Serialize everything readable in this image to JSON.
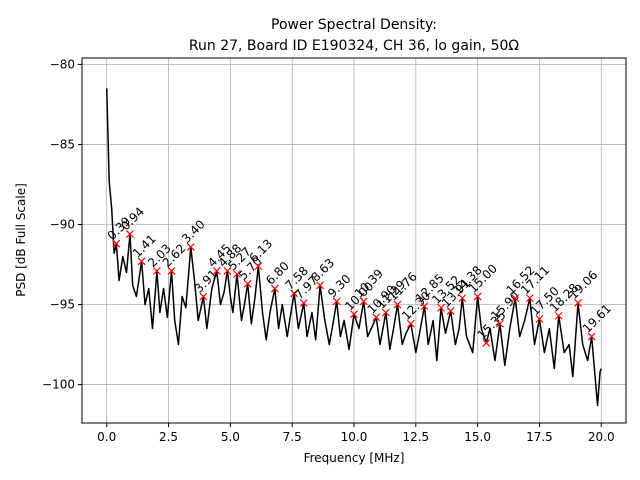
{
  "chart_data": {
    "type": "line",
    "title": [
      "Power Spectral Density:",
      "Run 27, Board ID E190324, CH 36, lo gain, 50Ω"
    ],
    "xlabel": "Frequency [MHz]",
    "ylabel": "PSD [dB Full Scale]",
    "xlim": [
      -1,
      21
    ],
    "ylim": [
      -102.4,
      -79.6
    ],
    "xticks": [
      {
        "value": 0,
        "label": "0.0"
      },
      2.5,
      {
        "value": 5,
        "label": "5.0"
      },
      7.5,
      {
        "value": 10,
        "label": "10.0"
      },
      12.5,
      {
        "value": 15,
        "label": "15.0"
      },
      17.5,
      {
        "value": 20,
        "label": "20.0"
      }
    ],
    "yticks": [
      {
        "value": -100,
        "label": "−100"
      },
      {
        "value": -95,
        "label": "−95"
      },
      {
        "value": -90,
        "label": "−90"
      },
      {
        "value": -85,
        "label": "−85"
      },
      {
        "value": -80,
        "label": "−80"
      }
    ],
    "grid": true,
    "series": [
      {
        "color": "#000000",
        "marker": "none",
        "x": [
          0.0,
          0.1,
          0.2,
          0.3,
          0.39,
          0.5,
          0.65,
          0.8,
          0.94,
          1.05,
          1.2,
          1.41,
          1.55,
          1.7,
          1.85,
          2.03,
          2.15,
          2.3,
          2.45,
          2.62,
          2.75,
          2.9,
          3.05,
          3.2,
          3.4,
          3.55,
          3.7,
          3.91,
          4.05,
          4.25,
          4.45,
          4.6,
          4.75,
          4.88,
          5.0,
          5.1,
          5.27,
          5.45,
          5.57,
          5.7,
          5.85,
          6.0,
          6.13,
          6.3,
          6.45,
          6.6,
          6.8,
          6.95,
          7.1,
          7.3,
          7.45,
          7.58,
          7.75,
          7.97,
          8.1,
          8.3,
          8.45,
          8.63,
          8.8,
          9.0,
          9.15,
          9.3,
          9.45,
          9.6,
          9.8,
          10.0,
          10.2,
          10.39,
          10.55,
          10.7,
          10.9,
          11.05,
          11.29,
          11.45,
          11.6,
          11.76,
          11.95,
          12.1,
          12.3,
          12.5,
          12.65,
          12.85,
          13.0,
          13.2,
          13.35,
          13.52,
          13.7,
          13.91,
          14.1,
          14.25,
          14.38,
          14.55,
          14.8,
          15.0,
          15.15,
          15.35,
          15.5,
          15.7,
          15.9,
          16.1,
          16.3,
          16.52,
          16.7,
          16.9,
          17.11,
          17.3,
          17.5,
          17.7,
          17.9,
          18.1,
          18.28,
          18.5,
          18.7,
          18.85,
          19.06,
          19.25,
          19.45,
          19.61,
          19.75,
          19.85,
          19.95,
          20.0
        ],
        "values": [
          -81.5,
          -87.3,
          -89,
          -91.8,
          -91.2,
          -93.5,
          -92,
          -93,
          -90.6,
          -93.8,
          -94.5,
          -92.3,
          -95,
          -94,
          -96.5,
          -92.9,
          -95.5,
          -94,
          -95.8,
          -92.9,
          -96,
          -97.5,
          -94.5,
          -95.2,
          -91.4,
          -93.5,
          -96,
          -94.5,
          -96.5,
          -94,
          -92.9,
          -95,
          -94.2,
          -92.9,
          -94.5,
          -95.5,
          -93.1,
          -96,
          -95,
          -93.7,
          -96.2,
          -94.5,
          -92.6,
          -95.5,
          -97.2,
          -95.5,
          -94.0,
          -96.5,
          -95,
          -97,
          -95.5,
          -94.3,
          -96.5,
          -94.9,
          -97,
          -95.5,
          -97.2,
          -93.8,
          -95.8,
          -97.5,
          -96.2,
          -94.8,
          -97,
          -96,
          -97.8,
          -95.6,
          -96.5,
          -94.8,
          -97,
          -96.5,
          -95.8,
          -97.5,
          -95.5,
          -97.8,
          -96.5,
          -95.0,
          -97.5,
          -96.8,
          -96.2,
          -98,
          -96.8,
          -95.1,
          -97.5,
          -96,
          -98.5,
          -95.2,
          -96.8,
          -95.4,
          -97.5,
          -96.5,
          -94.6,
          -97,
          -98,
          -94.5,
          -96.5,
          -97.4,
          -96.5,
          -98.5,
          -96.2,
          -98.8,
          -96.5,
          -94.6,
          -97,
          -96,
          -94.6,
          -97.5,
          -95.9,
          -98,
          -96.5,
          -99,
          -95.7,
          -98,
          -97.5,
          -99.5,
          -94.9,
          -97.5,
          -98.5,
          -97.0,
          -99.5,
          -101.3,
          -99.2,
          -99
        ]
      },
      {
        "color": "#ff0000",
        "marker": "x",
        "x": [
          0.39,
          0.94,
          1.41,
          2.03,
          2.62,
          3.4,
          3.91,
          4.45,
          4.88,
          5.27,
          5.7,
          6.13,
          6.8,
          7.58,
          7.97,
          8.63,
          9.3,
          10.0,
          10.39,
          10.9,
          11.29,
          11.76,
          12.3,
          12.85,
          13.52,
          13.91,
          14.38,
          15.0,
          15.35,
          15.9,
          16.52,
          17.11,
          17.5,
          18.28,
          19.06,
          19.61
        ],
        "x_labels": [
          "0.39",
          "0.94",
          "1.41",
          "2.03",
          "2.62",
          "3.40",
          "3.91",
          "4.45",
          "4.88",
          "5.27",
          "5.70",
          "6.13",
          "6.80",
          "7.58",
          "7.97",
          "8.63",
          "9.30",
          "10.00",
          "10.39",
          "10.90",
          "11.29",
          "11.76",
          "12.30",
          "12.85",
          "13.52",
          "13.91",
          "14.38",
          "15.00",
          "15.35",
          "15.90",
          "16.52",
          "17.11",
          "17.50",
          "18.28",
          "19.06",
          "19.61"
        ],
        "values": [
          -91.2,
          -90.6,
          -92.3,
          -92.9,
          -92.9,
          -91.4,
          -94.5,
          -92.9,
          -92.9,
          -93.1,
          -93.7,
          -92.6,
          -94.0,
          -94.3,
          -94.9,
          -93.8,
          -94.8,
          -95.6,
          -94.8,
          -95.8,
          -95.5,
          -95.0,
          -96.2,
          -95.1,
          -95.2,
          -95.4,
          -94.6,
          -94.5,
          -97.4,
          -96.2,
          -94.6,
          -94.6,
          -95.9,
          -95.7,
          -94.9,
          -97.0
        ]
      }
    ]
  }
}
